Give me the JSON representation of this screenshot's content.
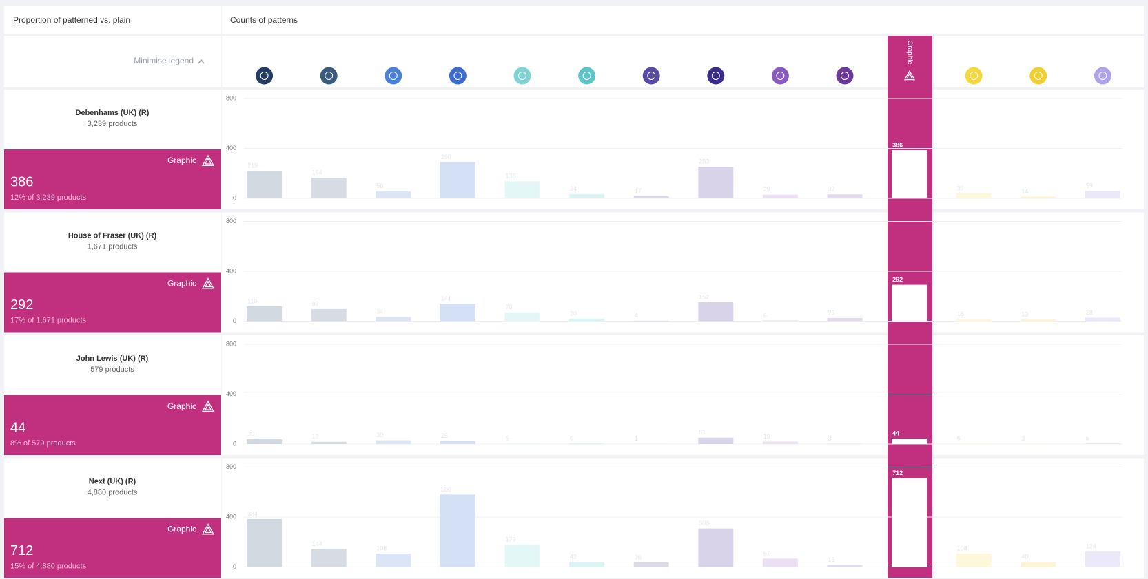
{
  "header": {
    "left": "Proportion of patterned vs. plain",
    "right": "Counts of patterns"
  },
  "legend": {
    "toggle": "Minimise legend",
    "highlight_label": "Graphic",
    "highlight_index": 10,
    "highlight_color": "#c0307f",
    "icon_colors": [
      "#233d63",
      "#3a5a80",
      "#4a80d8",
      "#3d6ccf",
      "#7fd3d3",
      "#5cc5c8",
      "#5a4aa8",
      "#3b2c8a",
      "#8a5abf",
      "#6c3a9a",
      "#c0307f",
      "#f5d63c",
      "#f0cf30",
      "#b0a2e8"
    ],
    "bar_colors": [
      "#d3d9e1",
      "#d7dce4",
      "#dbe5f6",
      "#d4e0f6",
      "#e4f7f7",
      "#dcf3f3",
      "#dcd8ec",
      "#d8d3e8",
      "#ebdff4",
      "#e4daef",
      "#ffffff",
      "#fdf8d9",
      "#fcf5d3",
      "#ebe8fa"
    ]
  },
  "chart_data": [
    {
      "type": "bar",
      "title": "Debenhams (UK) (R)",
      "subtitle": "3,239 products",
      "note": "12% of 3,239 products",
      "values": [
        219,
        164,
        56,
        290,
        136,
        34,
        17,
        253,
        29,
        32,
        386,
        39,
        14,
        59
      ],
      "ylim": [
        0,
        800
      ],
      "yticks": [
        0,
        400,
        800
      ],
      "grid": true
    },
    {
      "type": "bar",
      "title": "House of Fraser (UK) (R)",
      "subtitle": "1,671 products",
      "note": "17% of 1,671 products",
      "values": [
        119,
        97,
        34,
        141,
        70,
        20,
        4,
        152,
        6,
        25,
        292,
        16,
        13,
        28
      ],
      "ylim": [
        0,
        800
      ],
      "yticks": [
        0,
        400,
        800
      ],
      "grid": true
    },
    {
      "type": "bar",
      "title": "John Lewis (UK) (R)",
      "subtitle": "579 products",
      "note": "8% of 579 products",
      "values": [
        39,
        18,
        30,
        25,
        5,
        6,
        1,
        51,
        19,
        3,
        44,
        6,
        3,
        5
      ],
      "ylim": [
        0,
        800
      ],
      "yticks": [
        0,
        400,
        800
      ],
      "grid": true
    },
    {
      "type": "bar",
      "title": "Next (UK) (R)",
      "subtitle": "4,880 products",
      "note": "15% of 4,880 products",
      "values": [
        384,
        144,
        108,
        580,
        179,
        42,
        36,
        308,
        67,
        16,
        712,
        108,
        40,
        124
      ],
      "ylim": [
        0,
        800
      ],
      "yticks": [
        0,
        400,
        800
      ],
      "grid": true
    }
  ]
}
